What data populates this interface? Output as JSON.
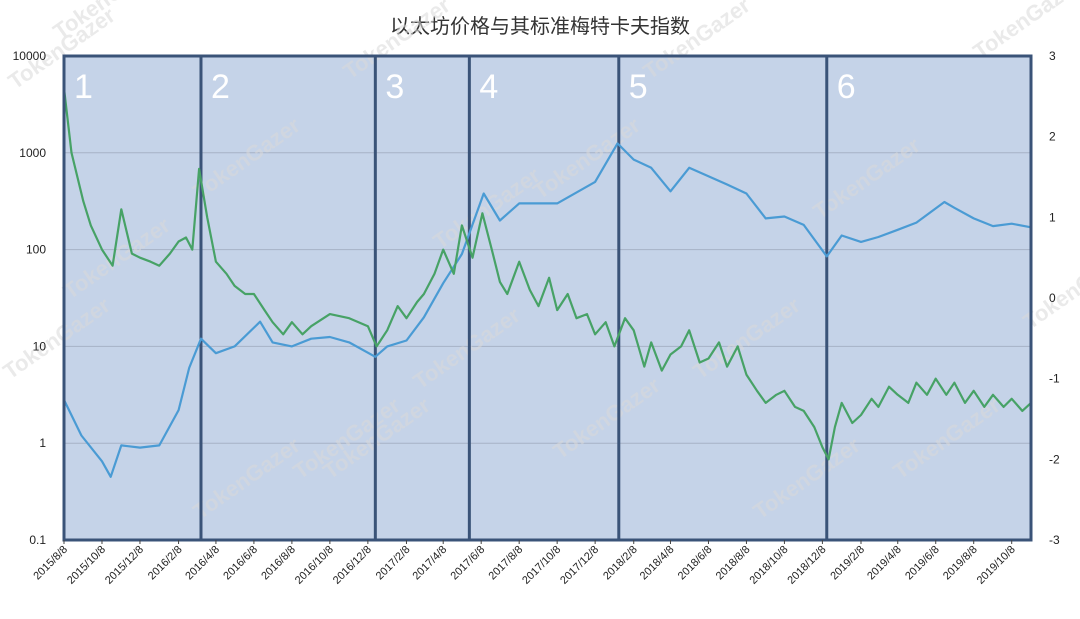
{
  "chart_data": {
    "type": "line",
    "title": "以太坊价格与其标准梅特卡夫指数",
    "xlabel": "",
    "ylabel": "",
    "y_scale_left": "log",
    "ylim_left": [
      0.1,
      10000
    ],
    "ylim_right": [
      -3,
      3
    ],
    "left_ticks": [
      "10000",
      "1000",
      "100",
      "10",
      "1",
      "0.1"
    ],
    "right_ticks": [
      "3",
      "2",
      "1",
      "0",
      "-1",
      "-2",
      "-3"
    ],
    "x_range": [
      "2015-08-08",
      "2019-11-08"
    ],
    "x_ticks": [
      "2015/8/8",
      "2015/10/8",
      "2015/12/8",
      "2016/2/8",
      "2016/4/8",
      "2016/6/8",
      "2016/8/8",
      "2016/10/8",
      "2016/12/8",
      "2017/2/8",
      "2017/4/8",
      "2017/6/8",
      "2017/8/8",
      "2017/10/8",
      "2017/12/8",
      "2018/2/8",
      "2018/4/8",
      "2018/6/8",
      "2018/8/8",
      "2018/10/8",
      "2018/12/8",
      "2019/2/8",
      "2019/4/8",
      "2019/6/8",
      "2019/8/8",
      "2019/10/8"
    ],
    "grid": true,
    "legend": "none",
    "period_boundaries": [
      "2016-03-15",
      "2016-12-20",
      "2017-05-20",
      "2018-01-15",
      "2018-12-15"
    ],
    "period_labels": [
      "1",
      "2",
      "3",
      "4",
      "5",
      "6"
    ],
    "series": [
      {
        "axis": "left",
        "color": "#4a9bd4",
        "points": [
          [
            "2015-08-08",
            2.8
          ],
          [
            "2015-09-05",
            1.2
          ],
          [
            "2015-10-08",
            0.65
          ],
          [
            "2015-10-22",
            0.45
          ],
          [
            "2015-11-08",
            0.95
          ],
          [
            "2015-12-08",
            0.9
          ],
          [
            "2016-01-08",
            0.95
          ],
          [
            "2016-02-08",
            2.2
          ],
          [
            "2016-02-25",
            6
          ],
          [
            "2016-03-15",
            12
          ],
          [
            "2016-04-08",
            8.5
          ],
          [
            "2016-05-08",
            10
          ],
          [
            "2016-06-18",
            18
          ],
          [
            "2016-07-08",
            11
          ],
          [
            "2016-08-08",
            10
          ],
          [
            "2016-09-08",
            12
          ],
          [
            "2016-10-08",
            12.5
          ],
          [
            "2016-11-08",
            11
          ],
          [
            "2016-12-20",
            7.8
          ],
          [
            "2017-01-08",
            10
          ],
          [
            "2017-02-08",
            11.5
          ],
          [
            "2017-03-08",
            20
          ],
          [
            "2017-04-08",
            45
          ],
          [
            "2017-05-08",
            90
          ],
          [
            "2017-06-12",
            380
          ],
          [
            "2017-07-08",
            200
          ],
          [
            "2017-08-08",
            300
          ],
          [
            "2017-10-08",
            300
          ],
          [
            "2017-12-08",
            500
          ],
          [
            "2018-01-13",
            1250
          ],
          [
            "2018-02-08",
            850
          ],
          [
            "2018-03-08",
            700
          ],
          [
            "2018-04-08",
            400
          ],
          [
            "2018-05-08",
            700
          ],
          [
            "2018-07-08",
            470
          ],
          [
            "2018-08-08",
            380
          ],
          [
            "2018-09-08",
            210
          ],
          [
            "2018-10-08",
            220
          ],
          [
            "2018-11-08",
            180
          ],
          [
            "2018-12-15",
            85
          ],
          [
            "2019-01-08",
            140
          ],
          [
            "2019-02-08",
            120
          ],
          [
            "2019-03-08",
            135
          ],
          [
            "2019-04-08",
            160
          ],
          [
            "2019-05-08",
            190
          ],
          [
            "2019-06-22",
            310
          ],
          [
            "2019-07-08",
            270
          ],
          [
            "2019-08-08",
            210
          ],
          [
            "2019-09-08",
            175
          ],
          [
            "2019-10-08",
            185
          ],
          [
            "2019-11-08",
            170
          ]
        ]
      },
      {
        "axis": "right",
        "color": "#47a266",
        "points": [
          [
            "2015-08-08",
            2.6
          ],
          [
            "2015-08-20",
            1.8
          ],
          [
            "2015-09-08",
            1.2
          ],
          [
            "2015-09-20",
            0.9
          ],
          [
            "2015-10-08",
            0.6
          ],
          [
            "2015-10-25",
            0.4
          ],
          [
            "2015-11-08",
            1.1
          ],
          [
            "2015-11-25",
            0.55
          ],
          [
            "2015-12-08",
            0.5
          ],
          [
            "2015-12-25",
            0.45
          ],
          [
            "2016-01-08",
            0.4
          ],
          [
            "2016-01-25",
            0.55
          ],
          [
            "2016-02-08",
            0.7
          ],
          [
            "2016-02-20",
            0.75
          ],
          [
            "2016-03-01",
            0.6
          ],
          [
            "2016-03-12",
            1.6
          ],
          [
            "2016-03-25",
            1.0
          ],
          [
            "2016-04-08",
            0.45
          ],
          [
            "2016-04-25",
            0.3
          ],
          [
            "2016-05-08",
            0.15
          ],
          [
            "2016-05-25",
            0.05
          ],
          [
            "2016-06-08",
            0.05
          ],
          [
            "2016-06-25",
            -0.15
          ],
          [
            "2016-07-08",
            -0.3
          ],
          [
            "2016-07-25",
            -0.45
          ],
          [
            "2016-08-08",
            -0.3
          ],
          [
            "2016-08-25",
            -0.45
          ],
          [
            "2016-09-08",
            -0.35
          ],
          [
            "2016-10-08",
            -0.2
          ],
          [
            "2016-11-08",
            -0.25
          ],
          [
            "2016-12-08",
            -0.35
          ],
          [
            "2016-12-22",
            -0.6
          ],
          [
            "2017-01-08",
            -0.4
          ],
          [
            "2017-01-25",
            -0.1
          ],
          [
            "2017-02-08",
            -0.25
          ],
          [
            "2017-02-25",
            -0.05
          ],
          [
            "2017-03-08",
            0.05
          ],
          [
            "2017-03-25",
            0.3
          ],
          [
            "2017-04-08",
            0.6
          ],
          [
            "2017-04-25",
            0.3
          ],
          [
            "2017-05-08",
            0.9
          ],
          [
            "2017-05-25",
            0.5
          ],
          [
            "2017-06-10",
            1.05
          ],
          [
            "2017-06-25",
            0.6
          ],
          [
            "2017-07-08",
            0.2
          ],
          [
            "2017-07-20",
            0.05
          ],
          [
            "2017-08-08",
            0.45
          ],
          [
            "2017-08-25",
            0.1
          ],
          [
            "2017-09-08",
            -0.1
          ],
          [
            "2017-09-25",
            0.25
          ],
          [
            "2017-10-08",
            -0.15
          ],
          [
            "2017-10-25",
            0.05
          ],
          [
            "2017-11-08",
            -0.25
          ],
          [
            "2017-11-25",
            -0.2
          ],
          [
            "2017-12-08",
            -0.45
          ],
          [
            "2017-12-25",
            -0.3
          ],
          [
            "2018-01-08",
            -0.6
          ],
          [
            "2018-01-25",
            -0.25
          ],
          [
            "2018-02-08",
            -0.4
          ],
          [
            "2018-02-25",
            -0.85
          ],
          [
            "2018-03-08",
            -0.55
          ],
          [
            "2018-03-25",
            -0.9
          ],
          [
            "2018-04-08",
            -0.7
          ],
          [
            "2018-04-25",
            -0.6
          ],
          [
            "2018-05-08",
            -0.4
          ],
          [
            "2018-05-25",
            -0.8
          ],
          [
            "2018-06-08",
            -0.75
          ],
          [
            "2018-06-25",
            -0.55
          ],
          [
            "2018-07-08",
            -0.85
          ],
          [
            "2018-07-25",
            -0.6
          ],
          [
            "2018-08-08",
            -0.95
          ],
          [
            "2018-08-25",
            -1.15
          ],
          [
            "2018-09-08",
            -1.3
          ],
          [
            "2018-09-25",
            -1.2
          ],
          [
            "2018-10-08",
            -1.15
          ],
          [
            "2018-10-25",
            -1.35
          ],
          [
            "2018-11-08",
            -1.4
          ],
          [
            "2018-11-25",
            -1.6
          ],
          [
            "2018-12-08",
            -1.85
          ],
          [
            "2018-12-18",
            -2.0
          ],
          [
            "2018-12-28",
            -1.6
          ],
          [
            "2019-01-08",
            -1.3
          ],
          [
            "2019-01-25",
            -1.55
          ],
          [
            "2019-02-08",
            -1.45
          ],
          [
            "2019-02-25",
            -1.25
          ],
          [
            "2019-03-08",
            -1.35
          ],
          [
            "2019-03-25",
            -1.1
          ],
          [
            "2019-04-08",
            -1.2
          ],
          [
            "2019-04-25",
            -1.3
          ],
          [
            "2019-05-08",
            -1.05
          ],
          [
            "2019-05-25",
            -1.2
          ],
          [
            "2019-06-08",
            -1.0
          ],
          [
            "2019-06-25",
            -1.2
          ],
          [
            "2019-07-08",
            -1.05
          ],
          [
            "2019-07-25",
            -1.3
          ],
          [
            "2019-08-08",
            -1.15
          ],
          [
            "2019-08-25",
            -1.35
          ],
          [
            "2019-09-08",
            -1.2
          ],
          [
            "2019-09-25",
            -1.35
          ],
          [
            "2019-10-08",
            -1.25
          ],
          [
            "2019-10-25",
            -1.4
          ],
          [
            "2019-11-08",
            -1.3
          ]
        ]
      }
    ],
    "watermark": "TokenGazer"
  }
}
